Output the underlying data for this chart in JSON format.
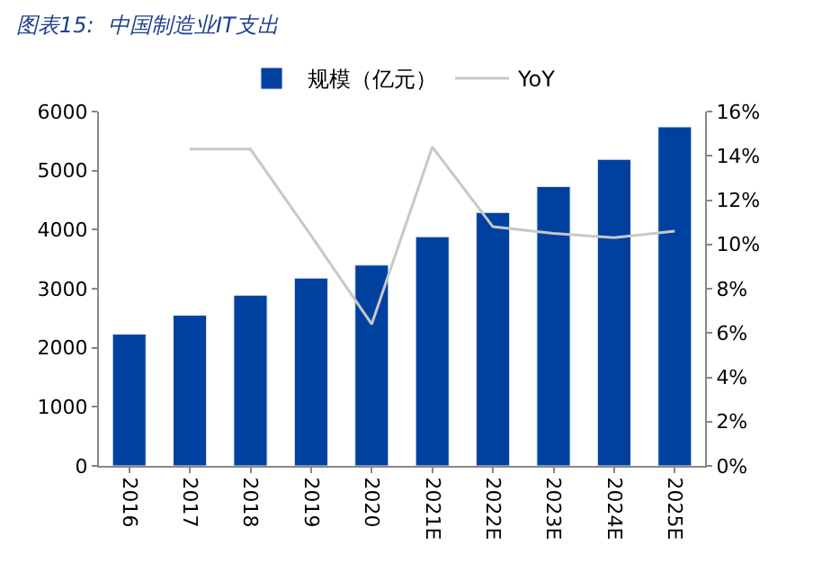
{
  "chart_data": {
    "type": "bar",
    "title": "图表15:  中国制造业IT支出",
    "categories": [
      "2016",
      "2017",
      "2018",
      "2019",
      "2020",
      "2021E",
      "2022E",
      "2023E",
      "2024E",
      "2025E"
    ],
    "series": [
      {
        "name": "规模（亿元）",
        "color": "#0041a0",
        "values": [
          2230,
          2550,
          2890,
          3180,
          3400,
          3880,
          4290,
          4730,
          5190,
          5740
        ]
      },
      {
        "name": "YoY",
        "type": "line",
        "axis": "y2",
        "color": "#c8c8c8",
        "values": [
          null,
          14.3,
          14.3,
          10.4,
          6.4,
          14.4,
          10.8,
          10.5,
          10.3,
          10.6
        ]
      }
    ],
    "ylim": [
      0,
      6000
    ],
    "yticks": [
      0,
      1000,
      2000,
      3000,
      4000,
      5000,
      6000
    ],
    "y2lim": [
      0,
      16
    ],
    "y2ticks": [
      {
        "value": 0,
        "label": "0%"
      },
      {
        "value": 2,
        "label": "2%"
      },
      {
        "value": 4,
        "label": "4%"
      },
      {
        "value": 6,
        "label": "6%"
      },
      {
        "value": 8,
        "label": "8%"
      },
      {
        "value": 10,
        "label": "10%"
      },
      {
        "value": 12,
        "label": "12%"
      },
      {
        "value": 14,
        "label": "14%"
      },
      {
        "value": 16,
        "label": "16%"
      }
    ],
    "legend": "top",
    "marker": "none"
  }
}
